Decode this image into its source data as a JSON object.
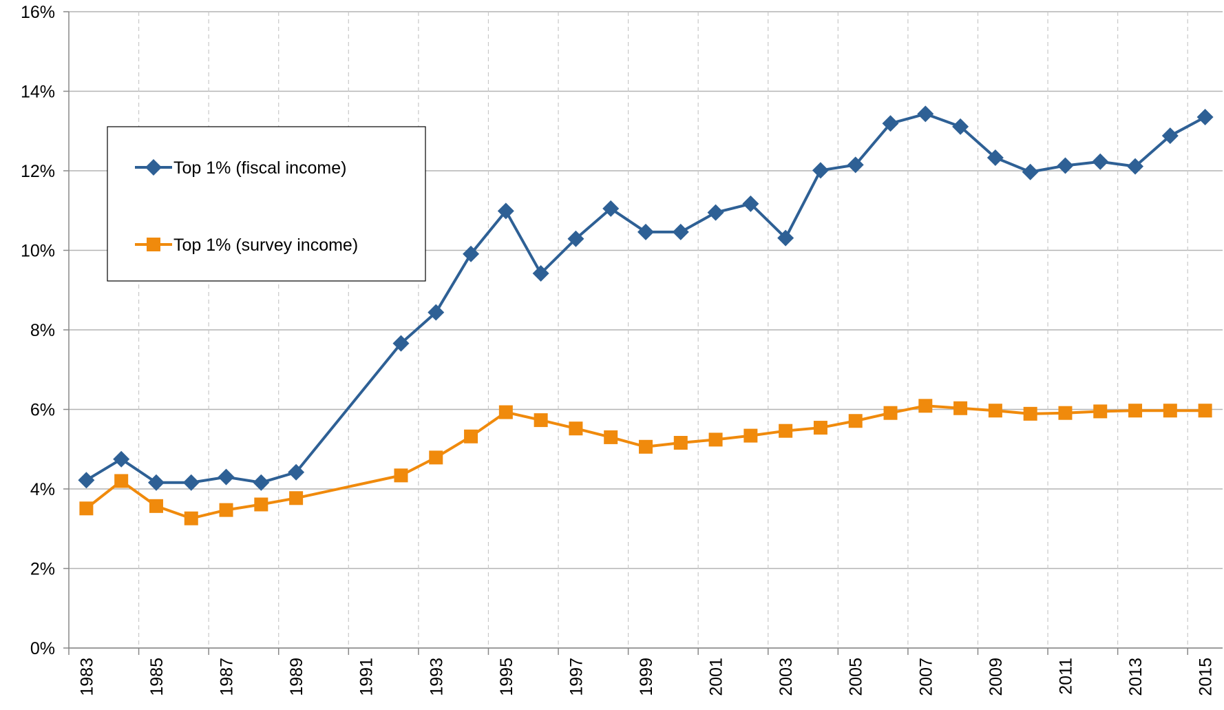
{
  "chart_data": {
    "type": "line",
    "x": [
      1983,
      1984,
      1985,
      1986,
      1987,
      1988,
      1989,
      1992,
      1993,
      1994,
      1995,
      1996,
      1997,
      1998,
      1999,
      2000,
      2001,
      2002,
      2003,
      2004,
      2005,
      2006,
      2007,
      2008,
      2009,
      2010,
      2011,
      2012,
      2013,
      2014,
      2015
    ],
    "series": [
      {
        "name": "Top 1% (fiscal income)",
        "color": "#2e6095",
        "marker": "diamond",
        "values": [
          4.22,
          4.75,
          4.16,
          4.16,
          4.3,
          4.16,
          4.42,
          7.66,
          8.44,
          9.91,
          10.99,
          9.42,
          10.29,
          11.05,
          10.46,
          10.46,
          10.95,
          11.17,
          10.31,
          12.01,
          12.15,
          13.19,
          13.43,
          13.11,
          12.33,
          11.97,
          12.13,
          12.23,
          12.11,
          12.88,
          13.35
        ]
      },
      {
        "name": "Top 1% (survey income)",
        "color": "#f08a0c",
        "marker": "square",
        "values": [
          3.51,
          4.2,
          3.57,
          3.26,
          3.47,
          3.61,
          3.77,
          4.34,
          4.79,
          5.32,
          5.93,
          5.73,
          5.52,
          5.3,
          5.06,
          5.16,
          5.24,
          5.34,
          5.46,
          5.54,
          5.71,
          5.91,
          6.09,
          6.03,
          5.97,
          5.89,
          5.91,
          5.95,
          5.97,
          5.97,
          5.97
        ]
      }
    ],
    "xlim": [
      1982.5,
      2015.5
    ],
    "xticks": [
      1983,
      1985,
      1987,
      1989,
      1991,
      1993,
      1995,
      1997,
      1999,
      2001,
      2003,
      2005,
      2007,
      2009,
      2011,
      2013,
      2015
    ],
    "ylim": [
      0,
      16
    ],
    "yticks": [
      {
        "value": 0,
        "label": "0%"
      },
      {
        "value": 2,
        "label": "2%"
      },
      {
        "value": 4,
        "label": "4%"
      },
      {
        "value": 6,
        "label": "6%"
      },
      {
        "value": 8,
        "label": "8%"
      },
      {
        "value": 10,
        "label": "10%"
      },
      {
        "value": 12,
        "label": "12%"
      },
      {
        "value": 14,
        "label": "14%"
      },
      {
        "value": 16,
        "label": "16%"
      }
    ],
    "grid": true,
    "legend": "upper left"
  }
}
